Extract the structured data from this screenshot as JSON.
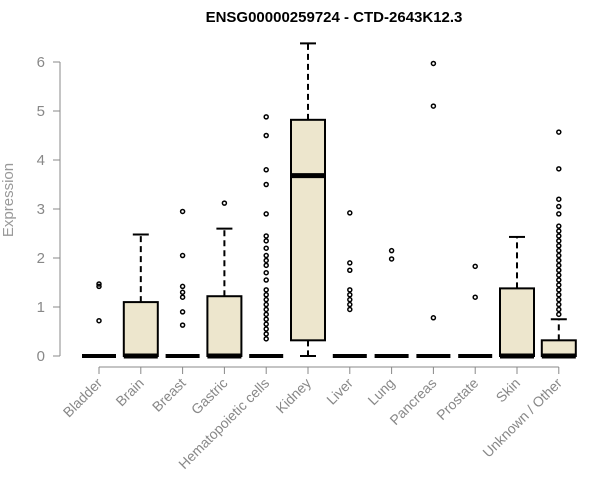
{
  "chart_data": {
    "type": "boxplot",
    "title": "ENSG00000259724 - CTD-2643K12.3",
    "ylabel": "Expression",
    "xlabel": "",
    "ylim": [
      0,
      6.4
    ],
    "yticks": [
      "0",
      "1",
      "2",
      "3",
      "4",
      "5",
      "6"
    ],
    "box_fill": "#ede6cd",
    "box_stroke": "#000000",
    "categories": [
      "Bladder",
      "Brain",
      "Breast",
      "Gastric",
      "Hematopoietic cells",
      "Kidney",
      "Liver",
      "Lung",
      "Pancreas",
      "Prostate",
      "Skin",
      "Unknown / Other"
    ],
    "boxes": [
      {
        "q1": 0,
        "median": 0,
        "q3": 0,
        "whisker_low": 0,
        "whisker_high": 0,
        "outliers": [
          0.72,
          1.42,
          1.47
        ]
      },
      {
        "q1": 0,
        "median": 0,
        "q3": 1.1,
        "whisker_low": 0,
        "whisker_high": 2.48,
        "outliers": []
      },
      {
        "q1": 0,
        "median": 0,
        "q3": 0,
        "whisker_low": 0,
        "whisker_high": 0,
        "outliers": [
          0.63,
          0.9,
          1.2,
          1.3,
          1.42,
          2.05,
          2.95
        ]
      },
      {
        "q1": 0,
        "median": 0,
        "q3": 1.22,
        "whisker_low": 0,
        "whisker_high": 2.6,
        "outliers": [
          3.12
        ]
      },
      {
        "q1": 0,
        "median": 0,
        "q3": 0,
        "whisker_low": 0,
        "whisker_high": 0,
        "outliers": [
          0.35,
          0.45,
          0.55,
          0.65,
          0.75,
          0.85,
          0.95,
          1.05,
          1.15,
          1.25,
          1.35,
          1.55,
          1.7,
          1.85,
          1.95,
          2.05,
          2.2,
          2.35,
          2.45,
          2.9,
          3.5,
          3.8,
          4.5,
          4.88
        ]
      },
      {
        "q1": 0.32,
        "median": 3.68,
        "q3": 4.82,
        "whisker_low": 0,
        "whisker_high": 6.38,
        "outliers": []
      },
      {
        "q1": 0,
        "median": 0,
        "q3": 0,
        "whisker_low": 0,
        "whisker_high": 0,
        "outliers": [
          0.95,
          1.05,
          1.15,
          1.25,
          1.35,
          1.75,
          1.9,
          2.92
        ]
      },
      {
        "q1": 0,
        "median": 0,
        "q3": 0,
        "whisker_low": 0,
        "whisker_high": 0,
        "outliers": [
          1.98,
          2.15
        ]
      },
      {
        "q1": 0,
        "median": 0,
        "q3": 0,
        "whisker_low": 0,
        "whisker_high": 0,
        "outliers": [
          0.78,
          5.1,
          5.97
        ]
      },
      {
        "q1": 0,
        "median": 0,
        "q3": 0,
        "whisker_low": 0,
        "whisker_high": 0,
        "outliers": [
          1.2,
          1.83
        ]
      },
      {
        "q1": 0,
        "median": 0,
        "q3": 1.38,
        "whisker_low": 0,
        "whisker_high": 2.43,
        "outliers": []
      },
      {
        "q1": 0,
        "median": 0,
        "q3": 0.32,
        "whisker_low": 0,
        "whisker_high": 0.75,
        "outliers": [
          0.85,
          0.95,
          1.05,
          1.15,
          1.25,
          1.35,
          1.45,
          1.55,
          1.65,
          1.75,
          1.85,
          1.95,
          2.05,
          2.15,
          2.25,
          2.35,
          2.45,
          2.55,
          2.65,
          2.9,
          3.05,
          3.2,
          3.82,
          4.57
        ]
      }
    ]
  }
}
